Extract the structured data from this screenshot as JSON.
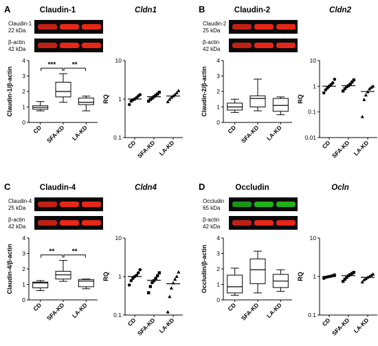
{
  "figure_panels": [
    {
      "letter": "A",
      "protein_title": "Claudin-1",
      "gene_title": "Cldn1",
      "blot": {
        "band_color": "#ff2a1a",
        "target_label": [
          "Claudin-1",
          "22 kDa"
        ],
        "actin_label": [
          "β-actin",
          "42 kDa"
        ]
      }
    },
    {
      "letter": "B",
      "protein_title": "Claudin-2",
      "gene_title": "Cldn2",
      "blot": {
        "band_color": "#ff2a1a",
        "target_label": [
          "Claudin-2",
          "25 kDa"
        ],
        "actin_label": [
          "β-actin",
          "42 kDa"
        ]
      }
    },
    {
      "letter": "C",
      "protein_title": "Claudin-4",
      "gene_title": "Cldn4",
      "blot": {
        "band_color": "#ff2a1a",
        "target_label": [
          "Claudin-4",
          "25 kDa"
        ],
        "actin_label": [
          "β-actin",
          "42 kDa"
        ]
      }
    },
    {
      "letter": "D",
      "protein_title": "Occludin",
      "gene_title": "Ocln",
      "blot": {
        "band_color": "#22c41a",
        "target_label": [
          "Occludin",
          "65 kDa"
        ],
        "actin_label": [
          "β-actin",
          "42 kDa"
        ]
      }
    }
  ],
  "chart_data": [
    {
      "type": "box",
      "panel": "A",
      "ylabel": "Claudin-1/β-actin",
      "ylim": [
        0,
        4
      ],
      "yticks": [
        0,
        1,
        2,
        3,
        4
      ],
      "categories": [
        "CD",
        "SFA-KD",
        "LA-KD"
      ],
      "boxes": [
        {
          "category": "CD",
          "min": 0.75,
          "q1": 0.85,
          "median": 0.97,
          "q3": 1.08,
          "max": 1.35
        },
        {
          "category": "SFA-KD",
          "min": 1.3,
          "q1": 1.65,
          "median": 2.0,
          "q3": 2.6,
          "max": 3.15
        },
        {
          "category": "LA-KD",
          "min": 0.75,
          "q1": 1.15,
          "median": 1.3,
          "q3": 1.58,
          "max": 1.7
        }
      ],
      "significance": [
        {
          "from": "CD",
          "to": "SFA-KD",
          "label": "***"
        },
        {
          "from": "SFA-KD",
          "to": "LA-KD",
          "label": "**"
        }
      ]
    },
    {
      "type": "scatter",
      "panel": "A",
      "ylabel": "RQ",
      "yscale": "log",
      "ylim": [
        0.1,
        10
      ],
      "yticks": [
        0.1,
        1,
        10
      ],
      "categories": [
        "CD",
        "SFA-KD",
        "LA-KD"
      ],
      "series": [
        {
          "category": "CD",
          "marker": "circle",
          "values": [
            0.72,
            0.88,
            0.95,
            1.0,
            1.08,
            1.2,
            1.3
          ],
          "mean": 1.0
        },
        {
          "category": "SFA-KD",
          "marker": "square",
          "values": [
            0.88,
            0.98,
            1.05,
            1.15,
            1.25,
            1.35,
            1.5
          ],
          "mean": 1.15
        },
        {
          "category": "LA-KD",
          "marker": "triangle",
          "values": [
            0.85,
            0.98,
            1.1,
            1.2,
            1.3,
            1.45,
            1.65
          ],
          "mean": 1.2
        }
      ]
    },
    {
      "type": "box",
      "panel": "B",
      "ylabel": "Claudin-2/β-actin",
      "ylim": [
        0,
        4
      ],
      "yticks": [
        0,
        1,
        2,
        3,
        4
      ],
      "categories": [
        "CD",
        "SFA-KD",
        "LA-KD"
      ],
      "boxes": [
        {
          "category": "CD",
          "min": 0.65,
          "q1": 0.8,
          "median": 1.0,
          "q3": 1.25,
          "max": 1.5
        },
        {
          "category": "SFA-KD",
          "min": 0.75,
          "q1": 1.0,
          "median": 1.55,
          "q3": 1.72,
          "max": 2.8
        },
        {
          "category": "LA-KD",
          "min": 0.5,
          "q1": 0.72,
          "median": 1.1,
          "q3": 1.55,
          "max": 1.65
        }
      ],
      "significance": []
    },
    {
      "type": "scatter",
      "panel": "B",
      "ylabel": "RQ",
      "yscale": "log",
      "ylim": [
        0.01,
        10
      ],
      "yticks": [
        0.01,
        0.1,
        1,
        10
      ],
      "categories": [
        "CD",
        "SFA-KD",
        "LA-KD"
      ],
      "series": [
        {
          "category": "CD",
          "marker": "circle",
          "values": [
            0.55,
            0.72,
            0.85,
            1.0,
            1.15,
            1.35,
            1.85
          ],
          "mean": 1.0
        },
        {
          "category": "SFA-KD",
          "marker": "square",
          "values": [
            0.65,
            0.8,
            0.95,
            1.05,
            1.2,
            1.45,
            1.75
          ],
          "mean": 1.05
        },
        {
          "category": "LA-KD",
          "marker": "triangle",
          "values": [
            0.065,
            0.3,
            0.45,
            0.6,
            0.78,
            0.9,
            1.0
          ],
          "mean": 0.62
        }
      ]
    },
    {
      "type": "box",
      "panel": "C",
      "ylabel": "Claudin-4/β-actin",
      "ylim": [
        0,
        4
      ],
      "yticks": [
        0,
        1,
        2,
        3,
        4
      ],
      "categories": [
        "CD",
        "SFA-KD",
        "LA-KD"
      ],
      "boxes": [
        {
          "category": "CD",
          "min": 0.6,
          "q1": 0.78,
          "median": 1.1,
          "q3": 1.15,
          "max": 1.25
        },
        {
          "category": "SFA-KD",
          "min": 1.2,
          "q1": 1.35,
          "median": 1.62,
          "q3": 1.85,
          "max": 2.55
        },
        {
          "category": "LA-KD",
          "min": 0.72,
          "q1": 0.85,
          "median": 1.22,
          "q3": 1.32,
          "max": 1.35
        }
      ],
      "significance": [
        {
          "from": "CD",
          "to": "SFA-KD",
          "label": "**"
        },
        {
          "from": "SFA-KD",
          "to": "LA-KD",
          "label": "**"
        }
      ]
    },
    {
      "type": "scatter",
      "panel": "C",
      "ylabel": "RQ",
      "yscale": "log",
      "ylim": [
        0.1,
        10
      ],
      "yticks": [
        0.1,
        1,
        10
      ],
      "categories": [
        "CD",
        "SFA-KD",
        "LA-KD"
      ],
      "series": [
        {
          "category": "CD",
          "marker": "circle",
          "values": [
            0.6,
            0.78,
            0.9,
            1.0,
            1.08,
            1.25,
            1.5
          ],
          "mean": 1.0
        },
        {
          "category": "SFA-KD",
          "marker": "square",
          "values": [
            0.38,
            0.55,
            0.7,
            0.78,
            0.9,
            1.05,
            1.25
          ],
          "mean": 0.8
        },
        {
          "category": "LA-KD",
          "marker": "triangle",
          "values": [
            0.12,
            0.3,
            0.5,
            0.68,
            0.85,
            1.0,
            1.3
          ],
          "mean": 0.65
        }
      ]
    },
    {
      "type": "box",
      "panel": "D",
      "ylabel": "Occludin/β-actin",
      "ylim": [
        0,
        4
      ],
      "yticks": [
        0,
        1,
        2,
        3,
        4
      ],
      "categories": [
        "CD",
        "SFA-KD",
        "LA-KD"
      ],
      "boxes": [
        {
          "category": "CD",
          "min": 0.3,
          "q1": 0.45,
          "median": 0.85,
          "q3": 1.6,
          "max": 2.05
        },
        {
          "category": "SFA-KD",
          "min": 0.45,
          "q1": 1.05,
          "median": 1.95,
          "q3": 2.65,
          "max": 3.15
        },
        {
          "category": "LA-KD",
          "min": 0.55,
          "q1": 0.8,
          "median": 1.22,
          "q3": 1.65,
          "max": 1.95
        }
      ],
      "significance": []
    },
    {
      "type": "scatter",
      "panel": "D",
      "ylabel": "RQ",
      "yscale": "log",
      "ylim": [
        0.1,
        10
      ],
      "yticks": [
        0.1,
        1,
        10
      ],
      "categories": [
        "CD",
        "SFA-KD",
        "LA-KD"
      ],
      "series": [
        {
          "category": "CD",
          "marker": "circle",
          "values": [
            0.9,
            0.95,
            0.98,
            1.0,
            1.02,
            1.05,
            1.1
          ],
          "mean": 1.0
        },
        {
          "category": "SFA-KD",
          "marker": "square",
          "values": [
            0.75,
            0.85,
            0.95,
            1.05,
            1.12,
            1.2,
            1.28
          ],
          "mean": 1.05
        },
        {
          "category": "LA-KD",
          "marker": "triangle",
          "values": [
            0.72,
            0.82,
            0.88,
            0.95,
            1.0,
            1.08,
            1.15
          ],
          "mean": 0.95
        }
      ]
    }
  ]
}
